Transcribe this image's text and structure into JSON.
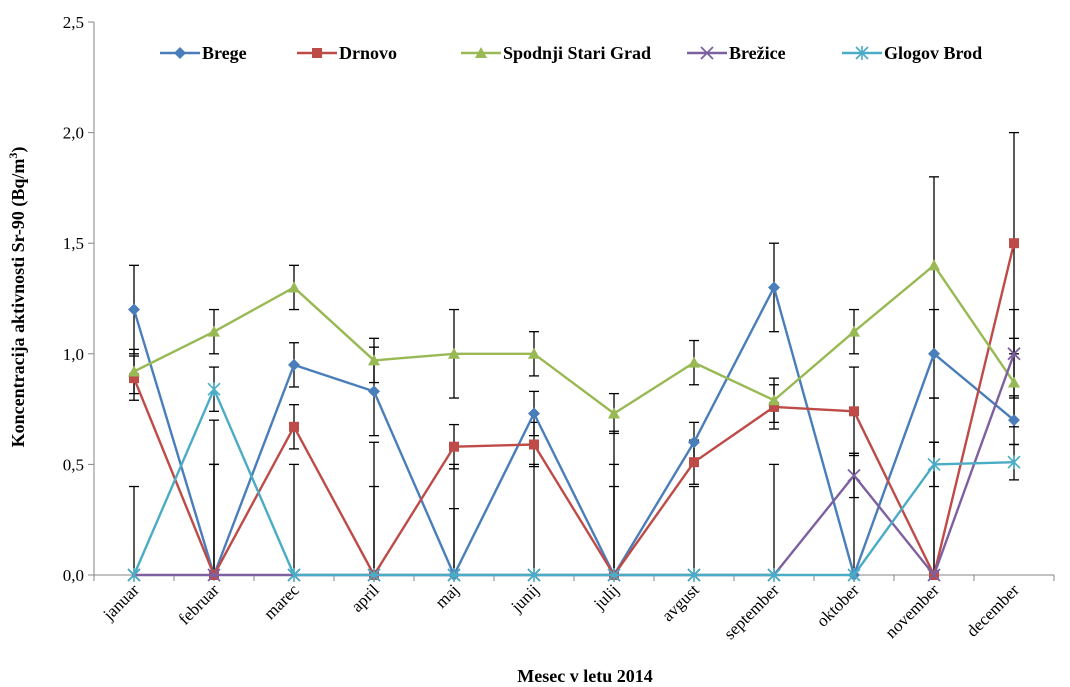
{
  "chart_data": {
    "type": "line",
    "xlabel": "Mesec v letu 2014",
    "ylabel": "Koncentracija aktivnosti Sr-90 (Bq/m",
    "ylabel_sup": "3",
    "ylabel_close": ")",
    "ylim": [
      0,
      2.5
    ],
    "yticks": [
      "0,0",
      "0,5",
      "1,0",
      "1,5",
      "2,0",
      "2,5"
    ],
    "yticks_values": [
      0,
      0.5,
      1.0,
      1.5,
      2.0,
      2.5
    ],
    "categories": [
      "januar",
      "februar",
      "marec",
      "april",
      "maj",
      "junij",
      "julij",
      "avgust",
      "september",
      "oktober",
      "november",
      "december"
    ],
    "grid": false,
    "legend_position": "top",
    "series": [
      {
        "name": "Brege",
        "color": "#4a7ebb",
        "marker": "diamond",
        "values": [
          1.2,
          0.0,
          0.95,
          0.83,
          0.0,
          0.73,
          0.0,
          0.6,
          1.3,
          0.0,
          1.0,
          0.7
        ],
        "errors": [
          0.2,
          0.5,
          0.1,
          0.2,
          0.5,
          0.1,
          0.5,
          0.09,
          0.2,
          0.55,
          0.2,
          0.11
        ]
      },
      {
        "name": "Drnovo",
        "color": "#be4b48",
        "marker": "square",
        "values": [
          0.89,
          0.0,
          0.67,
          0.0,
          0.58,
          0.59,
          0.0,
          0.51,
          0.76,
          0.74,
          0.0,
          1.5
        ],
        "errors": [
          0.1,
          0.7,
          0.1,
          0.6,
          0.1,
          0.1,
          0.65,
          0.1,
          0.1,
          0.2,
          0.6,
          0.5
        ]
      },
      {
        "name": "Spodnji Stari Grad",
        "color": "#98b954",
        "marker": "triangle",
        "values": [
          0.92,
          1.1,
          1.3,
          0.97,
          1.0,
          1.0,
          0.73,
          0.96,
          0.79,
          1.1,
          1.4,
          0.87
        ],
        "errors": [
          0.1,
          0.1,
          0.1,
          0.1,
          0.2,
          0.1,
          0.09,
          0.1,
          0.1,
          0.1,
          0.4,
          0.2
        ]
      },
      {
        "name": "Brežice",
        "color": "#7d60a0",
        "marker": "x",
        "values": [
          0.0,
          0.0,
          0.0,
          0.0,
          0.0,
          0.0,
          0.0,
          0.0,
          0.0,
          0.45,
          0.0,
          1.0
        ],
        "errors": [
          0.4,
          0.5,
          0.5,
          0.4,
          0.3,
          0.5,
          0.4,
          0.4,
          0.5,
          0.1,
          0.8,
          0.2
        ]
      },
      {
        "name": "Glogov Brod",
        "color": "#4bacc6",
        "marker": "asterisk",
        "values": [
          0.0,
          0.84,
          0.0,
          0.0,
          0.0,
          0.0,
          0.0,
          0.0,
          0.0,
          0.0,
          0.5,
          0.51
        ],
        "errors": [
          0.0,
          0.1,
          0.0,
          0.0,
          0.0,
          0.0,
          0.0,
          0.0,
          0.0,
          0.0,
          0.1,
          0.08
        ]
      }
    ]
  }
}
